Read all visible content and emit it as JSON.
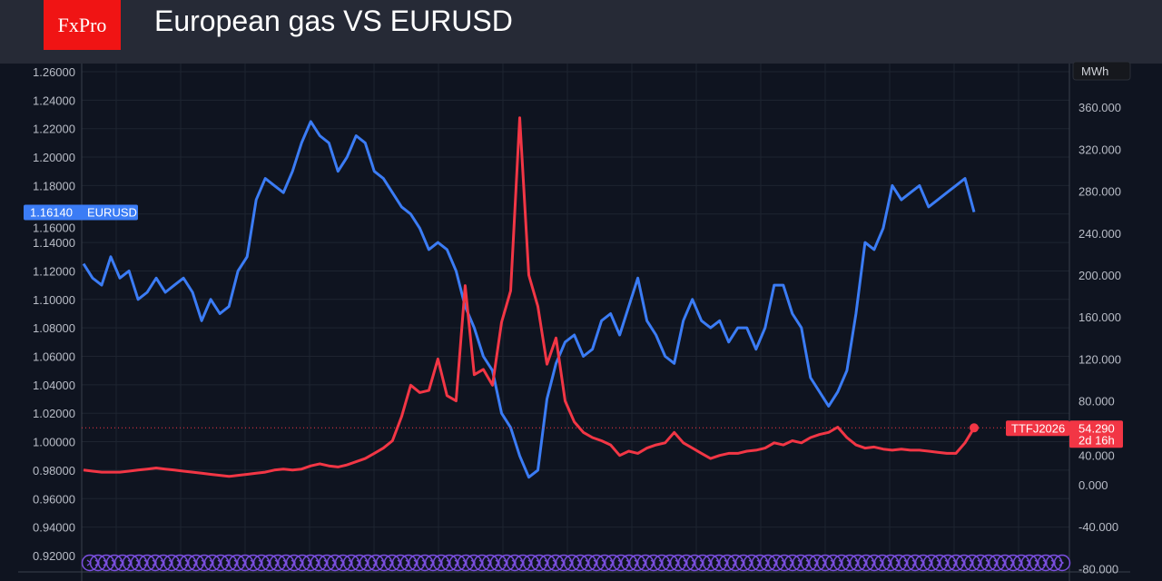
{
  "header": {
    "logo": "FxPro",
    "title": "European gas VS EURUSD"
  },
  "chart_data": {
    "type": "line",
    "title": "European gas VS EURUSD",
    "left_axis": {
      "ticks": [
        "1.26000",
        "1.24000",
        "1.22000",
        "1.20000",
        "1.18000",
        "1.16000",
        "1.14000",
        "1.12000",
        "1.10000",
        "1.08000",
        "1.06000",
        "1.04000",
        "1.02000",
        "1.00000",
        "0.98000",
        "0.96000",
        "0.94000",
        "0.92000"
      ],
      "ylim": [
        0.92,
        1.26
      ]
    },
    "right_axis": {
      "unit": "MWh",
      "ticks": [
        "360.000",
        "320.000",
        "280.000",
        "240.000",
        "200.000",
        "160.000",
        "120.000",
        "80.000",
        "40.000",
        "0.000",
        "-40.000",
        "-80.000"
      ],
      "ylim": [
        -80,
        360
      ]
    },
    "grid": true,
    "series": [
      {
        "name": "EURUSD",
        "axis": "left",
        "color": "#3b7cf5",
        "last_label": "1.16140",
        "values": [
          1.125,
          1.115,
          1.11,
          1.13,
          1.115,
          1.12,
          1.1,
          1.105,
          1.115,
          1.105,
          1.11,
          1.115,
          1.105,
          1.085,
          1.1,
          1.09,
          1.095,
          1.12,
          1.13,
          1.17,
          1.185,
          1.18,
          1.175,
          1.19,
          1.21,
          1.225,
          1.215,
          1.21,
          1.19,
          1.2,
          1.215,
          1.21,
          1.19,
          1.185,
          1.175,
          1.165,
          1.16,
          1.15,
          1.135,
          1.14,
          1.135,
          1.12,
          1.095,
          1.08,
          1.06,
          1.05,
          1.02,
          1.01,
          0.99,
          0.975,
          0.98,
          1.03,
          1.055,
          1.07,
          1.075,
          1.06,
          1.065,
          1.085,
          1.09,
          1.075,
          1.095,
          1.115,
          1.085,
          1.075,
          1.06,
          1.055,
          1.085,
          1.1,
          1.085,
          1.08,
          1.085,
          1.07,
          1.08,
          1.08,
          1.065,
          1.08,
          1.11,
          1.11,
          1.09,
          1.08,
          1.045,
          1.035,
          1.025,
          1.035,
          1.05,
          1.09,
          1.14,
          1.135,
          1.15,
          1.18,
          1.17,
          1.175,
          1.18,
          1.165,
          1.17,
          1.175,
          1.18,
          1.185,
          1.1614
        ]
      },
      {
        "name": "TTFJ2026",
        "axis": "right",
        "color": "#f23645",
        "last_label": "54.290",
        "countdown": "2d 16h",
        "values": [
          14,
          13,
          12,
          12,
          12,
          13,
          14,
          15,
          16,
          15,
          14,
          13,
          12,
          11,
          10,
          9,
          8,
          9,
          10,
          11,
          12,
          14,
          15,
          14,
          15,
          18,
          20,
          18,
          17,
          19,
          22,
          25,
          30,
          35,
          42,
          65,
          95,
          88,
          90,
          120,
          85,
          80,
          190,
          105,
          110,
          95,
          155,
          185,
          350,
          200,
          170,
          115,
          140,
          80,
          60,
          50,
          45,
          42,
          38,
          28,
          32,
          30,
          35,
          38,
          40,
          50,
          40,
          35,
          30,
          25,
          28,
          30,
          30,
          32,
          33,
          35,
          40,
          38,
          42,
          40,
          45,
          48,
          50,
          55,
          45,
          38,
          35,
          36,
          34,
          33,
          34,
          33,
          33,
          32,
          31,
          30,
          30,
          40,
          54.29
        ]
      }
    ],
    "event_marker_color": "#7b4fe0"
  }
}
